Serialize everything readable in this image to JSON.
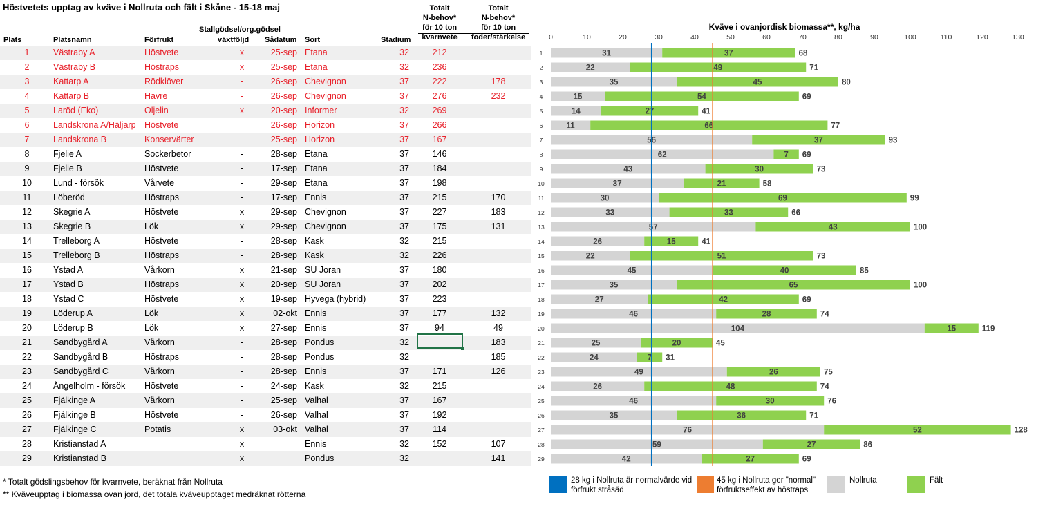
{
  "title": "Höstvetets upptag av kväve i Nollruta och fält i Skåne - 15-18 maj",
  "columns": {
    "plats": "Plats",
    "platsnamn": "Platsnamn",
    "forfrukt": "Förfrukt",
    "stall_line1": "Stallgödsel/org.gödsel",
    "stall_line2": "växtföljd",
    "sadatum": "Sådatum",
    "sort": "Sort",
    "stadium": "Stadium",
    "kvarn_line1": "Totalt",
    "kvarn_line2": "N-behov*",
    "kvarn_line3": "för 10 ton",
    "kvarn_line4": "kvarnvete",
    "foder_line1": "Totalt",
    "foder_line2": "N-behov*",
    "foder_line3": "för 10 ton",
    "foder_line4": "foder/stärkelse"
  },
  "rows": [
    {
      "plats": "1",
      "namn": "Västraby A",
      "forfrukt": "Höstvete",
      "stall": "x",
      "sadatum": "25-sep",
      "sort": "Etana",
      "stadium": "32",
      "kvarn": "212",
      "foder": "",
      "red": true
    },
    {
      "plats": "2",
      "namn": "Västraby B",
      "forfrukt": "Höstraps",
      "stall": "x",
      "sadatum": "25-sep",
      "sort": "Etana",
      "stadium": "32",
      "kvarn": "236",
      "foder": "",
      "red": true
    },
    {
      "plats": "3",
      "namn": "Kattarp A",
      "forfrukt": "Rödklöver",
      "stall": "-",
      "sadatum": "26-sep",
      "sort": "Chevignon",
      "stadium": "37",
      "kvarn": "222",
      "foder": "178",
      "red": true
    },
    {
      "plats": "4",
      "namn": "Kattarp B",
      "forfrukt": "Havre",
      "stall": "-",
      "sadatum": "26-sep",
      "sort": "Chevignon",
      "stadium": "37",
      "kvarn": "276",
      "foder": "232",
      "red": true
    },
    {
      "plats": "5",
      "namn": "Laröd (Eko)",
      "forfrukt": "Oljelin",
      "stall": "x",
      "sadatum": "20-sep",
      "sort": "Informer",
      "stadium": "32",
      "kvarn": "269",
      "foder": "",
      "red": true
    },
    {
      "plats": "6",
      "namn": "Landskrona A/Häljarp",
      "forfrukt": "Höstvete",
      "stall": "",
      "sadatum": "26-sep",
      "sort": "Horizon",
      "stadium": "37",
      "kvarn": "266",
      "foder": "",
      "red": true
    },
    {
      "plats": "7",
      "namn": "Landskrona B",
      "forfrukt": "Konservärter",
      "stall": "",
      "sadatum": "25-sep",
      "sort": "Horizon",
      "stadium": "37",
      "kvarn": "167",
      "foder": "",
      "red": true
    },
    {
      "plats": "8",
      "namn": "Fjelie A",
      "forfrukt": "Sockerbetor",
      "stall": "-",
      "sadatum": "28-sep",
      "sort": "Etana",
      "stadium": "37",
      "kvarn": "146",
      "foder": "",
      "red": false
    },
    {
      "plats": "9",
      "namn": "Fjelie B",
      "forfrukt": "Höstvete",
      "stall": "-",
      "sadatum": "17-sep",
      "sort": "Etana",
      "stadium": "37",
      "kvarn": "184",
      "foder": "",
      "red": false
    },
    {
      "plats": "10",
      "namn": "Lund - försök",
      "forfrukt": "Vårvete",
      "stall": "-",
      "sadatum": "29-sep",
      "sort": "Etana",
      "stadium": "37",
      "kvarn": "198",
      "foder": "",
      "red": false
    },
    {
      "plats": "11",
      "namn": "Löberöd",
      "forfrukt": "Höstraps",
      "stall": "-",
      "sadatum": "17-sep",
      "sort": "Ennis",
      "stadium": "37",
      "kvarn": "215",
      "foder": "170",
      "red": false
    },
    {
      "plats": "12",
      "namn": "Skegrie A",
      "forfrukt": "Höstvete",
      "stall": "x",
      "sadatum": "29-sep",
      "sort": "Chevignon",
      "stadium": "37",
      "kvarn": "227",
      "foder": "183",
      "red": false
    },
    {
      "plats": "13",
      "namn": "Skegrie B",
      "forfrukt": "Lök",
      "stall": "x",
      "sadatum": "29-sep",
      "sort": "Chevignon",
      "stadium": "37",
      "kvarn": "175",
      "foder": "131",
      "red": false
    },
    {
      "plats": "14",
      "namn": "Trelleborg A",
      "forfrukt": "Höstvete",
      "stall": "-",
      "sadatum": "28-sep",
      "sort": "Kask",
      "stadium": "32",
      "kvarn": "215",
      "foder": "",
      "red": false
    },
    {
      "plats": "15",
      "namn": "Trelleborg B",
      "forfrukt": "Höstraps",
      "stall": "-",
      "sadatum": "28-sep",
      "sort": "Kask",
      "stadium": "32",
      "kvarn": "226",
      "foder": "",
      "red": false
    },
    {
      "plats": "16",
      "namn": "Ystad A",
      "forfrukt": "Vårkorn",
      "stall": "x",
      "sadatum": "21-sep",
      "sort": "SU Joran",
      "stadium": "37",
      "kvarn": "180",
      "foder": "",
      "red": false
    },
    {
      "plats": "17",
      "namn": "Ystad B",
      "forfrukt": "Höstraps",
      "stall": "x",
      "sadatum": "20-sep",
      "sort": "SU Joran",
      "stadium": "37",
      "kvarn": "202",
      "foder": "",
      "red": false
    },
    {
      "plats": "18",
      "namn": "Ystad C",
      "forfrukt": "Höstvete",
      "stall": "x",
      "sadatum": "19-sep",
      "sort": "Hyvega (hybrid)",
      "stadium": "37",
      "kvarn": "223",
      "foder": "",
      "red": false
    },
    {
      "plats": "19",
      "namn": "Löderup A",
      "forfrukt": "Lök",
      "stall": "x",
      "sadatum": "02-okt",
      "sort": "Ennis",
      "stadium": "37",
      "kvarn": "177",
      "foder": "132",
      "red": false
    },
    {
      "plats": "20",
      "namn": "Löderup B",
      "forfrukt": "Lök",
      "stall": "x",
      "sadatum": "27-sep",
      "sort": "Ennis",
      "stadium": "37",
      "kvarn": "94",
      "foder": "49",
      "red": false
    },
    {
      "plats": "21",
      "namn": "Sandbygård A",
      "forfrukt": "Vårkorn",
      "stall": "-",
      "sadatum": "28-sep",
      "sort": "Pondus",
      "stadium": "32",
      "kvarn": "",
      "foder": "183",
      "red": false
    },
    {
      "plats": "22",
      "namn": "Sandbygård B",
      "forfrukt": "Höstraps",
      "stall": "-",
      "sadatum": "28-sep",
      "sort": "Pondus",
      "stadium": "32",
      "kvarn": "",
      "foder": "185",
      "red": false
    },
    {
      "plats": "23",
      "namn": "Sandbygård C",
      "forfrukt": "Vårkorn",
      "stall": "-",
      "sadatum": "28-sep",
      "sort": "Ennis",
      "stadium": "37",
      "kvarn": "171",
      "foder": "126",
      "red": false
    },
    {
      "plats": "24",
      "namn": "Ängelholm - försök",
      "forfrukt": "Höstvete",
      "stall": "-",
      "sadatum": "24-sep",
      "sort": "Kask",
      "stadium": "32",
      "kvarn": "215",
      "foder": "",
      "red": false
    },
    {
      "plats": "25",
      "namn": "Fjälkinge A",
      "forfrukt": "Vårkorn",
      "stall": "-",
      "sadatum": "25-sep",
      "sort": "Valhal",
      "stadium": "37",
      "kvarn": "167",
      "foder": "",
      "red": false
    },
    {
      "plats": "26",
      "namn": "Fjälkinge B",
      "forfrukt": "Höstvete",
      "stall": "-",
      "sadatum": "26-sep",
      "sort": "Valhal",
      "stadium": "37",
      "kvarn": "192",
      "foder": "",
      "red": false
    },
    {
      "plats": "27",
      "namn": "Fjälkinge C",
      "forfrukt": "Potatis",
      "stall": "x",
      "sadatum": "03-okt",
      "sort": "Valhal",
      "stadium": "37",
      "kvarn": "114",
      "foder": "",
      "red": false
    },
    {
      "plats": "28",
      "namn": "Kristianstad A",
      "forfrukt": "",
      "stall": "x",
      "sadatum": "",
      "sort": "Ennis",
      "stadium": "32",
      "kvarn": "152",
      "foder": "107",
      "red": false
    },
    {
      "plats": "29",
      "namn": "Kristianstad B",
      "forfrukt": "",
      "stall": "x",
      "sadatum": "",
      "sort": "Pondus",
      "stadium": "32",
      "kvarn": "",
      "foder": "141",
      "red": false
    }
  ],
  "footnotes": {
    "f1": "* Totalt gödslingsbehov för kvarnvete, beräknat från Nollruta",
    "f2": "** Kväveupptag i biomassa ovan jord, det totala kväveupptaget medräknat rötterna"
  },
  "chart_data": {
    "type": "bar",
    "orientation": "horizontal",
    "stacked": true,
    "title": "Kväve i ovanjordisk biomassa**, kg/ha",
    "categories": [
      "1",
      "2",
      "3",
      "4",
      "5",
      "6",
      "7",
      "8",
      "9",
      "10",
      "11",
      "12",
      "13",
      "14",
      "15",
      "16",
      "17",
      "18",
      "19",
      "20",
      "21",
      "22",
      "23",
      "24",
      "25",
      "26",
      "27",
      "28",
      "29"
    ],
    "series": [
      {
        "name": "Nollruta",
        "color": "#d4d4d4",
        "values": [
          31,
          22,
          35,
          15,
          14,
          11,
          56,
          62,
          43,
          37,
          30,
          33,
          57,
          26,
          22,
          45,
          35,
          27,
          46,
          104,
          25,
          24,
          49,
          26,
          46,
          35,
          76,
          59,
          42
        ]
      },
      {
        "name": "Fält",
        "color": "#8fd14f",
        "values": [
          37,
          49,
          45,
          54,
          27,
          66,
          37,
          7,
          30,
          21,
          69,
          33,
          43,
          15,
          51,
          40,
          65,
          42,
          28,
          15,
          20,
          7,
          26,
          48,
          30,
          36,
          52,
          27,
          27
        ]
      }
    ],
    "totals": [
      68,
      71,
      80,
      69,
      41,
      77,
      93,
      69,
      73,
      58,
      99,
      66,
      100,
      41,
      73,
      85,
      100,
      69,
      74,
      119,
      45,
      31,
      75,
      74,
      76,
      71,
      128,
      86,
      69
    ],
    "xlim": [
      0,
      130
    ],
    "xticks": [
      0,
      10,
      20,
      30,
      40,
      50,
      60,
      70,
      80,
      90,
      100,
      110,
      120,
      130
    ],
    "reference_lines": [
      {
        "value": 28,
        "color": "#0070c0",
        "label": "28 kg i Nollruta är normalvärde vid förfrukt stråsäd"
      },
      {
        "value": 45,
        "color": "#ed7d31",
        "label": "45 kg i Nollruta ger \"normal\" förfruktseffekt av höstraps"
      }
    ],
    "grid": false,
    "legend_position": "bottom"
  }
}
